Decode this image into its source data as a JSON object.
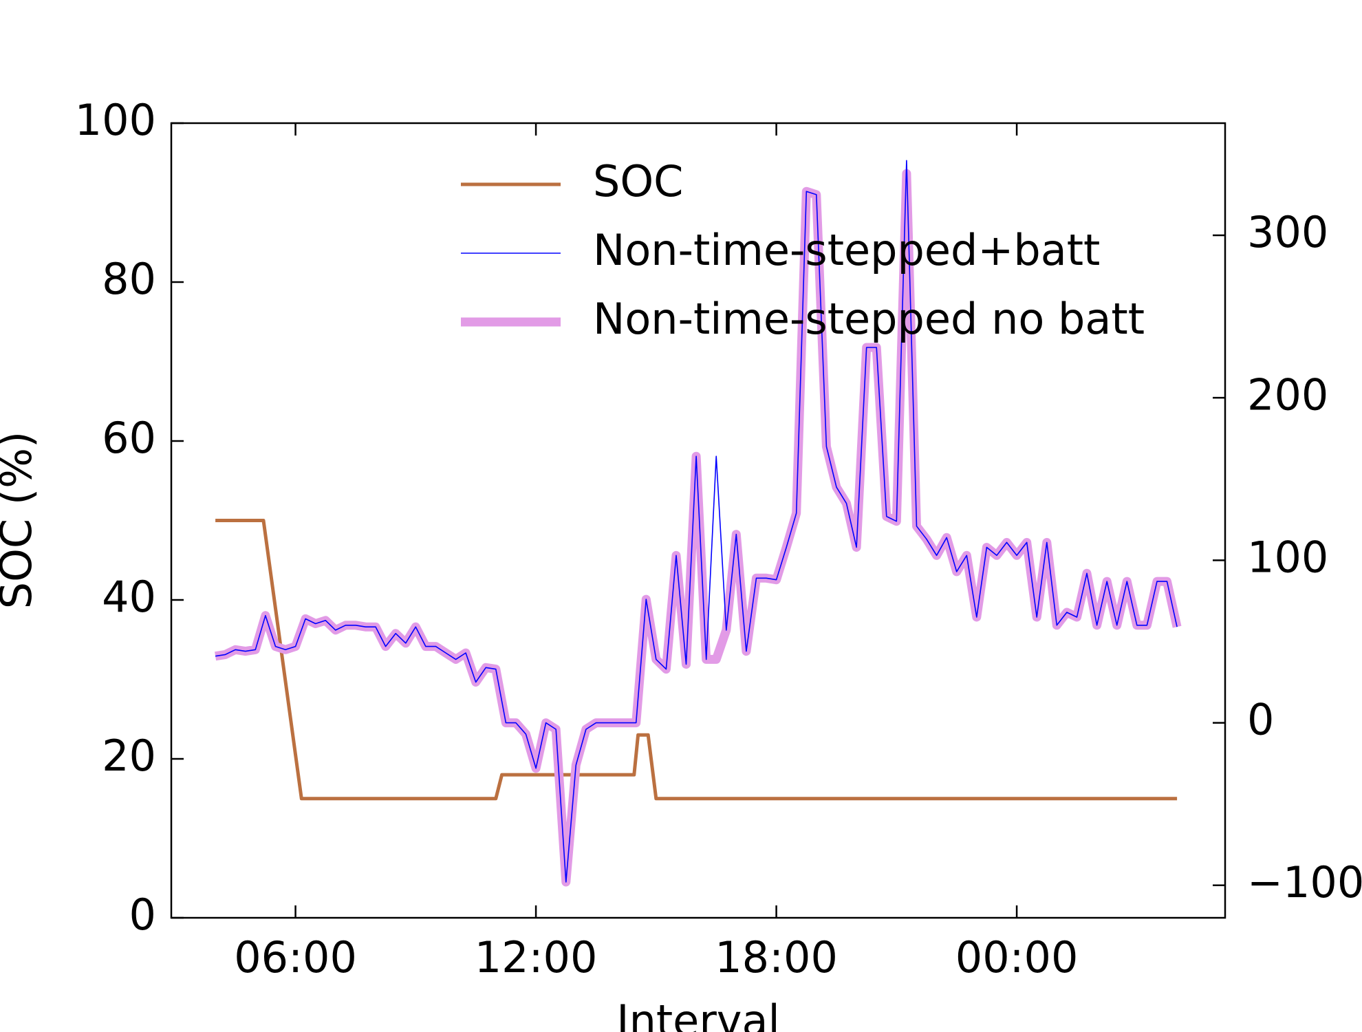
{
  "chart_data": {
    "type": "line",
    "x_label": "Interval",
    "y_label": "SOC (%)",
    "xlim": [
      2.9,
      29.2
    ],
    "xticks": [
      {
        "value": 6,
        "label": "06:00"
      },
      {
        "value": 12,
        "label": "12:00"
      },
      {
        "value": 18,
        "label": "18:00"
      },
      {
        "value": 24,
        "label": "00:00"
      }
    ],
    "ylim": [
      0,
      100
    ],
    "yticks": [
      0,
      20,
      40,
      60,
      80,
      100
    ],
    "y2lim": [
      -120,
      369
    ],
    "y2ticks": [
      {
        "value": -100,
        "label": "−100"
      },
      0,
      100,
      200,
      300
    ],
    "legend": "upper center",
    "x": [
      4.0,
      4.25,
      4.5,
      4.75,
      5.0,
      5.25,
      5.5,
      5.75,
      6.0,
      6.25,
      6.5,
      6.75,
      7.0,
      7.25,
      7.5,
      7.75,
      8.0,
      8.25,
      8.5,
      8.75,
      9.0,
      9.25,
      9.5,
      9.75,
      10.0,
      10.25,
      10.5,
      10.75,
      11.0,
      11.25,
      11.5,
      11.75,
      12.0,
      12.25,
      12.5,
      12.75,
      13.0,
      13.25,
      13.5,
      13.75,
      14.0,
      14.25,
      14.5,
      14.75,
      15.0,
      15.25,
      15.5,
      15.75,
      16.0,
      16.25,
      16.5,
      16.75,
      17.0,
      17.25,
      17.5,
      17.75,
      18.0,
      18.25,
      18.5,
      18.75,
      19.0,
      19.25,
      19.5,
      19.75,
      20.0,
      20.25,
      20.5,
      20.75,
      21.0,
      21.25,
      21.5,
      21.75,
      22.0,
      22.25,
      22.5,
      22.75,
      23.0,
      23.25,
      23.5,
      23.75,
      24.0,
      24.25,
      24.5,
      24.75,
      25.0,
      25.25,
      25.5,
      25.75,
      26.0,
      26.25,
      26.5,
      26.75,
      27.0,
      27.25,
      27.5,
      27.75,
      28.0
    ],
    "series": [
      {
        "name": "SOC",
        "color": "#bb7040",
        "width": 5,
        "axis": "y",
        "x": [
          4.0,
          5.2,
          6.15,
          11.0,
          11.15,
          14.45,
          14.55,
          14.8,
          15.0,
          28.0
        ],
        "values": [
          50,
          50,
          15,
          15,
          18,
          18,
          23,
          23,
          15,
          15
        ]
      },
      {
        "name": "Non-time-stepped no batt",
        "color": "#e29be6",
        "width": 13,
        "axis": "y2",
        "values": [
          41,
          42,
          45,
          44,
          45,
          66,
          47,
          45,
          47,
          64,
          61,
          63,
          57,
          60,
          60,
          59,
          59,
          47,
          55,
          49,
          59,
          47,
          47,
          43,
          39,
          43,
          25,
          34,
          33,
          0,
          0,
          -7,
          -28,
          0,
          -4,
          -98,
          -26,
          -4,
          0,
          0,
          0,
          0,
          0,
          76,
          39,
          33,
          103,
          36,
          164,
          39,
          39,
          57,
          116,
          44,
          89,
          89,
          88,
          108,
          129,
          327,
          325,
          170,
          145,
          135,
          108,
          231,
          231,
          127,
          124,
          338,
          121,
          113,
          103,
          114,
          93,
          103,
          65,
          108,
          103,
          111,
          103,
          111,
          65,
          111,
          60,
          68,
          65,
          92,
          60,
          87,
          60,
          87,
          60,
          60,
          87,
          87,
          59
        ]
      },
      {
        "name": "Non-time-stepped+batt",
        "color": "#0000ff",
        "width": 1.6,
        "axis": "y2",
        "values": [
          41,
          42,
          45,
          44,
          45,
          66,
          47,
          45,
          47,
          64,
          61,
          63,
          57,
          60,
          60,
          59,
          59,
          47,
          55,
          49,
          59,
          47,
          47,
          43,
          39,
          43,
          25,
          34,
          33,
          0,
          0,
          -7,
          -28,
          0,
          -4,
          -98,
          -26,
          -4,
          0,
          0,
          0,
          0,
          0,
          76,
          39,
          33,
          103,
          36,
          164,
          39,
          164,
          57,
          116,
          44,
          89,
          89,
          88,
          108,
          129,
          327,
          325,
          170,
          145,
          135,
          108,
          231,
          231,
          127,
          124,
          346,
          121,
          113,
          103,
          114,
          93,
          103,
          65,
          108,
          103,
          111,
          103,
          111,
          65,
          111,
          60,
          68,
          65,
          92,
          60,
          87,
          60,
          87,
          60,
          60,
          87,
          87,
          59
        ]
      }
    ]
  }
}
